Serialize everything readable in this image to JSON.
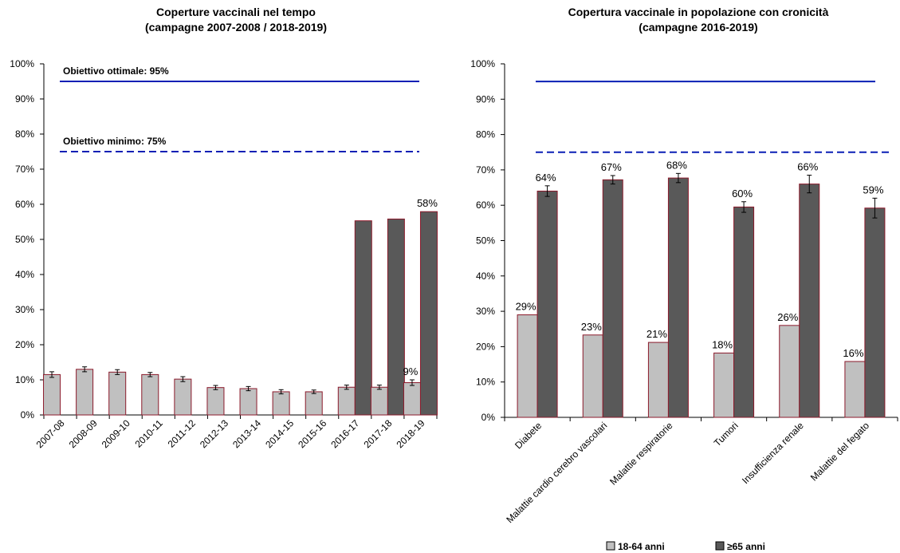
{
  "colors": {
    "bar_light": "#c0c0c0",
    "bar_dark": "#595959",
    "bar_stroke": "#8b1a2b",
    "target_line": "#0a1fb5",
    "axis": "#000000"
  },
  "chart_data": [
    {
      "type": "bar",
      "title_lines": [
        "Coperture vaccinali nel tempo",
        "(campagne 2007-2008 / 2018-2019)"
      ],
      "xlabel": "",
      "ylabel": "",
      "ylim": [
        0,
        100
      ],
      "yticks": [
        "0%",
        "10%",
        "20%",
        "30%",
        "40%",
        "50%",
        "60%",
        "70%",
        "80%",
        "90%",
        "100%"
      ],
      "categories": [
        "2007-08",
        "2008-09",
        "2009-10",
        "2010-11",
        "2011-12",
        "2012-13",
        "2013-14",
        "2014-15",
        "2015-16",
        "2016-17",
        "2017-18",
        "2018-19"
      ],
      "series": [
        {
          "color_key": "bar_light",
          "values": [
            11.5,
            13,
            12.2,
            11.5,
            10.2,
            7.8,
            7.5,
            6.6,
            6.6,
            7.9,
            7.9,
            9.2
          ],
          "errors": [
            0.8,
            0.7,
            0.7,
            0.6,
            0.7,
            0.6,
            0.6,
            0.6,
            0.5,
            0.6,
            0.6,
            0.8
          ],
          "labels": [
            "",
            "",
            "",
            "",
            "",
            "",
            "",
            "",
            "",
            "",
            "",
            "9%"
          ]
        },
        {
          "color_key": "bar_dark",
          "values": [
            null,
            null,
            null,
            null,
            null,
            null,
            null,
            null,
            null,
            55.3,
            55.8,
            57.9
          ],
          "labels": [
            "",
            "",
            "",
            "",
            "",
            "",
            "",
            "",
            "",
            "",
            "",
            "58%"
          ]
        }
      ],
      "targets": [
        {
          "value": 95,
          "style": "solid",
          "label": "Obiettivo ottimale: 95%"
        },
        {
          "value": 75,
          "style": "dashed",
          "label": "Obiettivo minimo: 75%"
        }
      ]
    },
    {
      "type": "bar",
      "title_lines": [
        "Copertura vaccinale in popolazione con cronicità",
        "(campagne 2016-2019)"
      ],
      "xlabel": "",
      "ylabel": "",
      "ylim": [
        0,
        100
      ],
      "yticks": [
        "0%",
        "10%",
        "20%",
        "30%",
        "40%",
        "50%",
        "60%",
        "70%",
        "80%",
        "90%",
        "100%"
      ],
      "categories": [
        "Diabete",
        "Malattie cardio cerebro vascolari",
        "Malattie respiratorie",
        "Tumori",
        "Insufficienza renale",
        "Malattie del fegato"
      ],
      "series": [
        {
          "name": "18-64 anni",
          "color_key": "bar_light",
          "values": [
            29,
            23.3,
            21.2,
            18.2,
            26,
            15.8
          ],
          "labels": [
            "29%",
            "23%",
            "21%",
            "18%",
            "26%",
            "16%"
          ]
        },
        {
          "name": "≥65 anni",
          "color_key": "bar_dark",
          "values": [
            64,
            67.2,
            67.7,
            59.5,
            66,
            59.2
          ],
          "errors": [
            1.5,
            1.2,
            1.3,
            1.5,
            2.5,
            2.8
          ],
          "labels": [
            "64%",
            "67%",
            "68%",
            "60%",
            "66%",
            "59%"
          ]
        }
      ],
      "targets": [
        {
          "value": 95,
          "style": "solid",
          "label": ""
        },
        {
          "value": 75,
          "style": "dashed",
          "label": ""
        }
      ],
      "legend": "bottom"
    }
  ]
}
